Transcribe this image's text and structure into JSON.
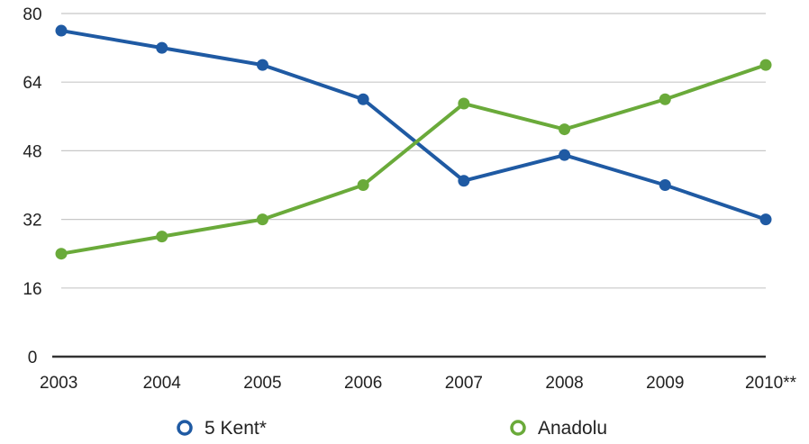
{
  "chart_data": {
    "type": "line",
    "title": "",
    "xlabel": "",
    "ylabel": "",
    "categories": [
      "2003",
      "2004",
      "2005",
      "2006",
      "2007",
      "2008",
      "2009",
      "2010**"
    ],
    "ylim": [
      0,
      80
    ],
    "yticks": [
      "0",
      "16",
      "32",
      "48",
      "64",
      "80"
    ],
    "grid": true,
    "legend_position": "bottom",
    "series": [
      {
        "name": "5 Kent*",
        "color": "#1f5aa3",
        "values": [
          76,
          72,
          68,
          60,
          41,
          47,
          40,
          32
        ]
      },
      {
        "name": "Anadolu",
        "color": "#6aaa3a",
        "values": [
          24,
          28,
          32,
          40,
          59,
          53,
          60,
          68
        ]
      }
    ]
  }
}
